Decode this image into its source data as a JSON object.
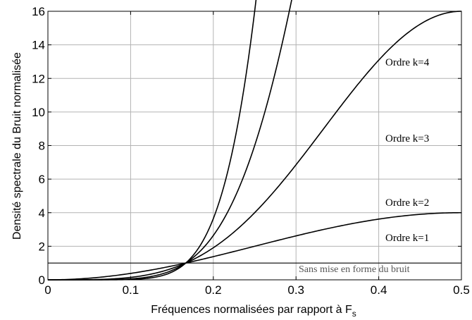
{
  "chart_data": {
    "type": "line",
    "xlabel": "Fréquences normalisées par rapport à F",
    "xlabel_sub": "s",
    "ylabel": "Densité spectrale du Bruit normalisée",
    "xlim": [
      0,
      0.5
    ],
    "ylim": [
      0,
      16
    ],
    "xticks": [
      0,
      0.1,
      0.2,
      0.3,
      0.4,
      0.5
    ],
    "xtick_labels": [
      "0",
      "0.1",
      "0.2",
      "0.3",
      "0.4",
      "0.5"
    ],
    "yticks": [
      0,
      2,
      4,
      6,
      8,
      10,
      12,
      14,
      16
    ],
    "ytick_labels": [
      "0",
      "2",
      "4",
      "6",
      "8",
      "10",
      "12",
      "14",
      "16"
    ],
    "grid": true,
    "series": [
      {
        "name": "Ordre k=1",
        "order": 1
      },
      {
        "name": "Ordre k=2",
        "order": 2
      },
      {
        "name": "Ordre k=3",
        "order": 3
      },
      {
        "name": "Ordre k=4",
        "order": 4
      }
    ],
    "reference": {
      "name": "Sans mise en forme du bruit",
      "value": 1
    }
  }
}
